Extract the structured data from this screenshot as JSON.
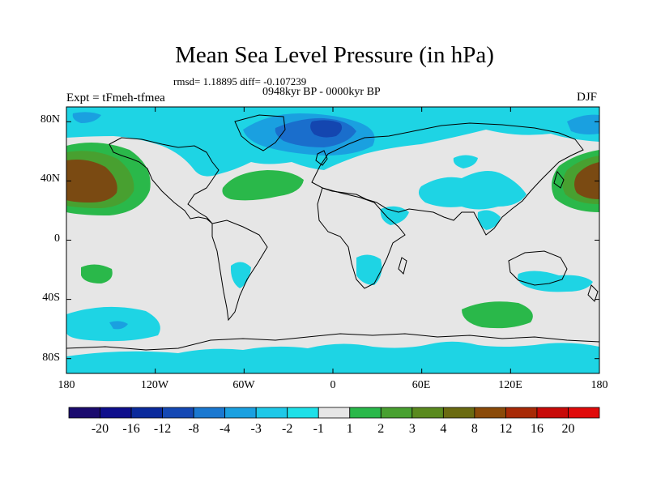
{
  "title": "Mean Sea Level Pressure (in hPa)",
  "stats": "rmsd= 1.18895 diff= -0.107239",
  "experiment": "Expt = tFmeh-tfmea",
  "period": "0948kyr BP - 0000kyr BP",
  "season": "DJF",
  "axes": {
    "lat_labels": [
      "80N",
      "40N",
      "0",
      "40S",
      "80S"
    ],
    "lon_labels": [
      "180",
      "120W",
      "60W",
      "0",
      "60E",
      "120E",
      "180"
    ]
  },
  "colorbar": {
    "labels": [
      "-20",
      "-16",
      "-12",
      "-8",
      "-4",
      "-3",
      "-2",
      "-1",
      "1",
      "2",
      "3",
      "4",
      "8",
      "12",
      "16",
      "20"
    ],
    "colors": [
      "#1a0a6e",
      "#0e0e8c",
      "#0a2a9c",
      "#1448b4",
      "#1a78d0",
      "#1aa0e0",
      "#1ec8e8",
      "#1ee0e8",
      "#e6e6e6",
      "#2ab84a",
      "#48a030",
      "#5a8a1e",
      "#6a6a10",
      "#8a4a08",
      "#a82a06",
      "#c80a08",
      "#e00a0a"
    ]
  },
  "map_colors": {
    "neutral": "#e6e6e6",
    "ocean_pos_low": "#2ab84a",
    "pos_mid": "#48a030",
    "pos_high": "#6a5a14",
    "pos_core": "#7a4a12",
    "neg_low": "#1ed4e4",
    "neg_mid": "#1aa0e0",
    "neg_high": "#1a6ecc",
    "neg_core": "#1446b0",
    "coast": "#000000"
  }
}
